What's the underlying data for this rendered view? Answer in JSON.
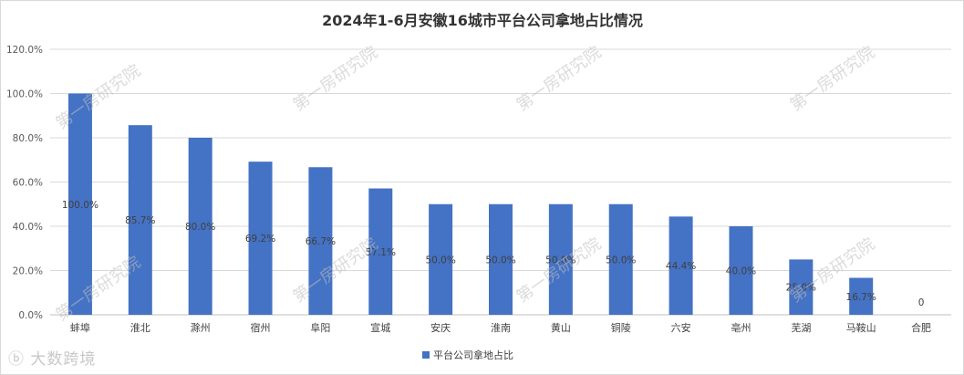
{
  "chart_data": {
    "type": "bar",
    "title": "2024年1-6月安徽16城市平台公司拿地占比情况",
    "xlabel": "",
    "ylabel": "",
    "ylim": [
      0,
      120
    ],
    "yticks": [
      "0.0%",
      "20.0%",
      "40.0%",
      "60.0%",
      "80.0%",
      "100.0%",
      "120.0%"
    ],
    "grid": true,
    "legend_position": "bottom",
    "categories": [
      "蚌埠",
      "淮北",
      "滁州",
      "宿州",
      "阜阳",
      "宣城",
      "安庆",
      "淮南",
      "黄山",
      "铜陵",
      "六安",
      "亳州",
      "芜湖",
      "马鞍山",
      "合肥"
    ],
    "series": [
      {
        "name": "平台公司拿地占比",
        "color": "#4472c4",
        "values": [
          100.0,
          85.7,
          80.0,
          69.2,
          66.7,
          57.1,
          50.0,
          50.0,
          50.0,
          50.0,
          44.4,
          40.0,
          25.0,
          16.7,
          0
        ],
        "labels": [
          "100.0%",
          "85.7%",
          "80.0%",
          "69.2%",
          "66.7%",
          "57.1%",
          "50.0%",
          "50.0%",
          "50.0%",
          "50.0%",
          "44.4%",
          "40.0%",
          "25.0%",
          "16.7%",
          "0"
        ]
      }
    ]
  },
  "watermark": "第一房研究院",
  "brand": "大数跨境"
}
